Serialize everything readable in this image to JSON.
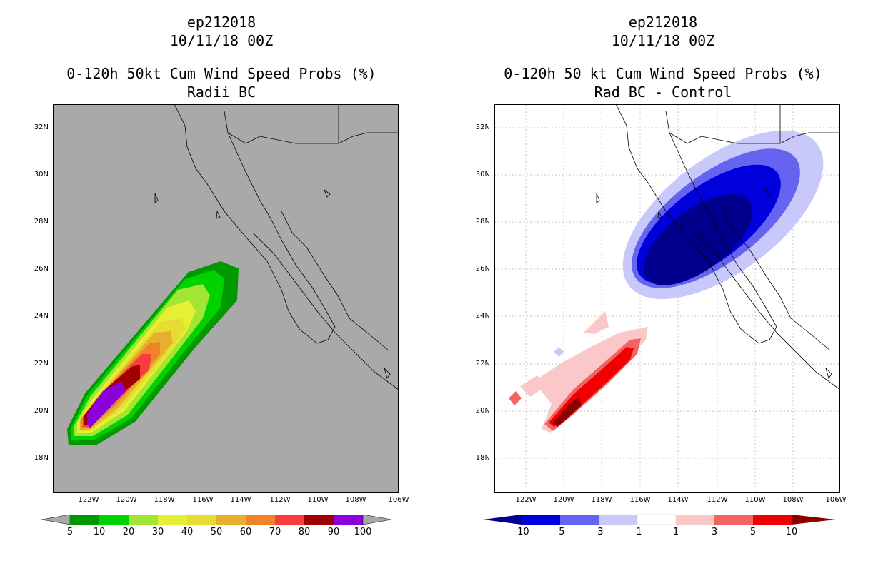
{
  "left_panel": {
    "title_lines": [
      "ep212018",
      "10/11/18 00Z",
      "0-120h 50kt Cum Wind Speed Probs (%)",
      "Radii BC"
    ],
    "lat_labels": [
      "32N",
      "30N",
      "28N",
      "26N",
      "24N",
      "22N",
      "20N",
      "18N"
    ],
    "lon_labels": [
      "122W",
      "120W",
      "118W",
      "116W",
      "114W",
      "112W",
      "110W",
      "108W",
      "106W"
    ],
    "colorbar": {
      "labels": [
        "5",
        "10",
        "20",
        "30",
        "40",
        "50",
        "60",
        "70",
        "80",
        "90",
        "100"
      ],
      "colors": [
        "#009a00",
        "#00d200",
        "#a0e632",
        "#e6f032",
        "#e6dc32",
        "#e6af2d",
        "#f08228",
        "#fa3c3c",
        "#a00000",
        "#8c00dc"
      ]
    },
    "background": "#a9a9a9"
  },
  "right_panel": {
    "title_lines": [
      "ep212018",
      "10/11/18 00Z",
      "0-120h 50 kt Cum Wind Speed Probs (%)",
      "Rad BC - Control"
    ],
    "lat_labels": [
      "32N",
      "30N",
      "28N",
      "26N",
      "24N",
      "22N",
      "20N",
      "18N"
    ],
    "lon_labels": [
      "122W",
      "120W",
      "118W",
      "116W",
      "114W",
      "112W",
      "110W",
      "108W",
      "106W"
    ],
    "colorbar": {
      "labels": [
        "-10",
        "-5",
        "-3",
        "-1",
        "1",
        "3",
        "5",
        "10"
      ],
      "colors": [
        "#00008c",
        "#0000dc",
        "#6464f0",
        "#c8c8fa",
        "#ffffff",
        "#fac8c8",
        "#f06464",
        "#f00000",
        "#8c0000"
      ]
    },
    "background": "#ffffff"
  }
}
